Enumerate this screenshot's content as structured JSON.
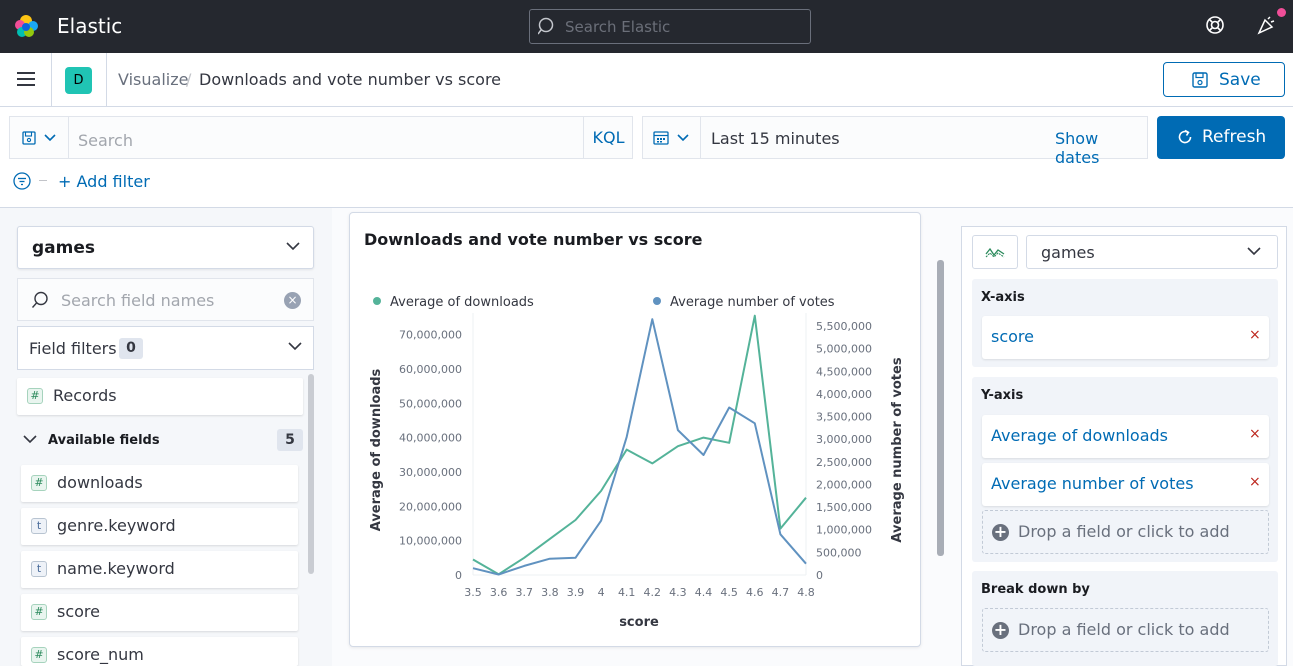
{
  "header": {
    "brand": "Elastic",
    "search_placeholder": "Search Elastic"
  },
  "breadcrumbs": {
    "space_initial": "D",
    "parent": "Visualize",
    "separator": "/",
    "current": "Downloads and vote number vs score",
    "save_label": "Save"
  },
  "query": {
    "placeholder": "Search",
    "language": "KQL",
    "time_range": "Last 15 minutes",
    "show_dates": "Show dates",
    "refresh_label": "Refresh",
    "add_filter": "+ Add filter"
  },
  "sidebar": {
    "index": "games",
    "field_search_placeholder": "Search field names",
    "field_filters_label": "Field filters",
    "field_filters_count": "0",
    "records_label": "Records",
    "available_label": "Available fields",
    "available_count": "5",
    "fields": [
      {
        "type": "#",
        "name": "downloads"
      },
      {
        "type": "t",
        "name": "genre.keyword"
      },
      {
        "type": "t",
        "name": "name.keyword"
      },
      {
        "type": "#",
        "name": "score"
      },
      {
        "type": "#",
        "name": "score_num"
      }
    ]
  },
  "editor": {
    "index": "games",
    "x_axis_title": "X-axis",
    "x_axis_field": "score",
    "y_axis_title": "Y-axis",
    "y_fields": [
      "Average of downloads",
      "Average number of votes"
    ],
    "drop_label": "Drop a field or click to add",
    "breakdown_title": "Break down by",
    "remove_glyph": "×"
  },
  "chart_data": {
    "type": "line",
    "title": "Downloads and vote number vs score",
    "xlabel": "score",
    "ylabel_left": "Average of downloads",
    "ylabel_right": "Average number of votes",
    "x": [
      "3.5",
      "3.6",
      "3.7",
      "3.8",
      "3.9",
      "4",
      "4.1",
      "4.2",
      "4.3",
      "4.4",
      "4.5",
      "4.6",
      "4.7",
      "4.8"
    ],
    "left_ticks": [
      "0",
      "10,000,000",
      "20,000,000",
      "30,000,000",
      "40,000,000",
      "50,000,000",
      "60,000,000",
      "70,000,000"
    ],
    "right_ticks": [
      "0",
      "500,000",
      "1,000,000",
      "1,500,000",
      "2,000,000",
      "2,500,000",
      "3,000,000",
      "3,500,000",
      "4,000,000",
      "4,500,000",
      "5,000,000",
      "5,500,000"
    ],
    "ylim_left": [
      0,
      72500000
    ],
    "ylim_right": [
      0,
      5500000
    ],
    "legend_position": "top",
    "series": [
      {
        "name": "Average of downloads",
        "axis": "left",
        "color": "#54b399",
        "values": [
          4500000,
          200000,
          5000000,
          10500000,
          16000000,
          24500000,
          36500000,
          32500000,
          37500000,
          40000000,
          38500000,
          75500000,
          13500000,
          22500000
        ]
      },
      {
        "name": "Average number of votes",
        "axis": "right",
        "color": "#6092c0",
        "values": [
          150000,
          10000,
          200000,
          360000,
          380000,
          1200000,
          3050000,
          5650000,
          3200000,
          2650000,
          3700000,
          3350000,
          900000,
          250000
        ]
      }
    ]
  }
}
